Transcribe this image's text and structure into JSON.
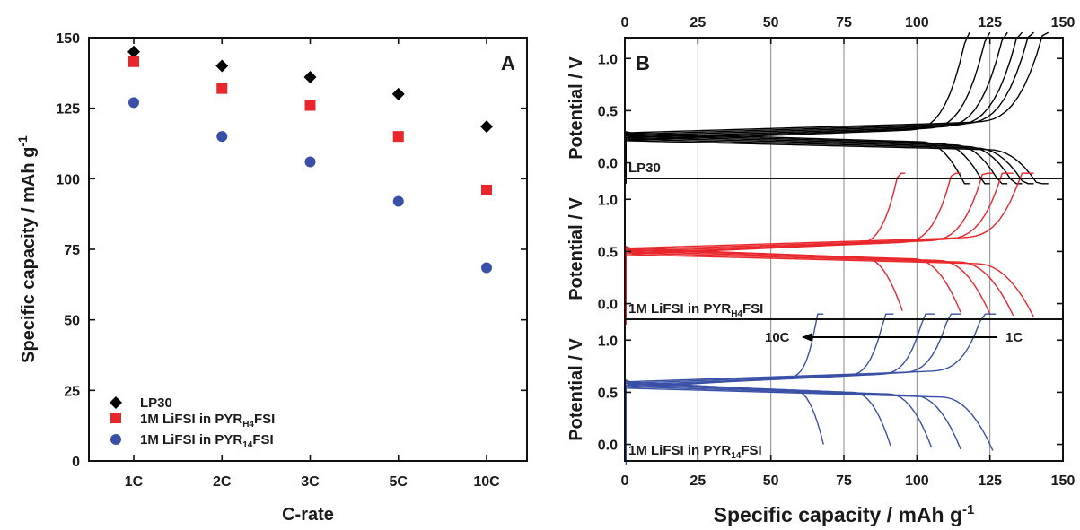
{
  "chart_data": [
    {
      "panel": "A",
      "type": "scatter",
      "categories": [
        "1C",
        "2C",
        "3C",
        "5C",
        "10C"
      ],
      "xlabel": "C-rate",
      "ylabel": "Specific capacity / mAh g",
      "ylabel_sup": "-1",
      "ylim": [
        0,
        150
      ],
      "yticks": [
        "0",
        "25",
        "50",
        "75",
        "100",
        "125",
        "150"
      ],
      "legend_position": "bottom-left",
      "series": [
        {
          "name": "LP30",
          "name_sub": "",
          "name_suffix": "",
          "marker": "diamond",
          "color": "#000000",
          "values": [
            145,
            140,
            136,
            130,
            118.5
          ]
        },
        {
          "name": "1M LiFSI in PYR",
          "name_sub": "H4",
          "name_suffix": "FSI",
          "marker": "square",
          "color": "#e8262b",
          "values": [
            141.5,
            132,
            126,
            115,
            96
          ]
        },
        {
          "name": "1M LiFSI in PYR",
          "name_sub": "14",
          "name_suffix": "FSI",
          "marker": "circle",
          "color": "#3a50a6",
          "values": [
            127,
            115,
            106,
            92,
            68.5
          ]
        }
      ]
    },
    {
      "panel": "B",
      "type": "line",
      "xlabel": "Specific capacity / mAh g",
      "xlabel_sup": "-1",
      "ylabel": "Potential / V",
      "xlim": [
        0,
        150
      ],
      "xticks": [
        "0",
        "25",
        "50",
        "75",
        "100",
        "125",
        "150"
      ],
      "ylim": [
        -0.15,
        1.2
      ],
      "yticks": [
        "0.0",
        "0.5",
        "1.0"
      ],
      "grid_x": true,
      "subpanels": [
        {
          "label": "LP30",
          "label_sub": "",
          "label_suffix": "",
          "color": "#000000",
          "plateau": 0.25,
          "charge_ends": [
            118,
            125,
            131,
            136,
            140,
            145
          ],
          "discharge_ends": [
            118,
            125,
            131,
            136,
            140,
            145
          ]
        },
        {
          "label": "1M LiFSI in PYR",
          "label_sub": "H4",
          "label_suffix": "FSI",
          "color": "#e8262b",
          "plateau": 0.5,
          "charge_ends": [
            96,
            115,
            126,
            133,
            140
          ],
          "discharge_ends": [
            95,
            115,
            125,
            133,
            140
          ]
        },
        {
          "label": "1M LiFSI in PYR",
          "label_sub": "14",
          "label_suffix": "FSI",
          "color": "#3a50a6",
          "plateau": 0.57,
          "charge_ends": [
            68,
            92,
            106,
            115,
            127
          ],
          "discharge_ends": [
            68,
            91,
            105,
            115,
            126
          ],
          "arrow_from": "1C",
          "arrow_to": "10C"
        }
      ]
    }
  ]
}
